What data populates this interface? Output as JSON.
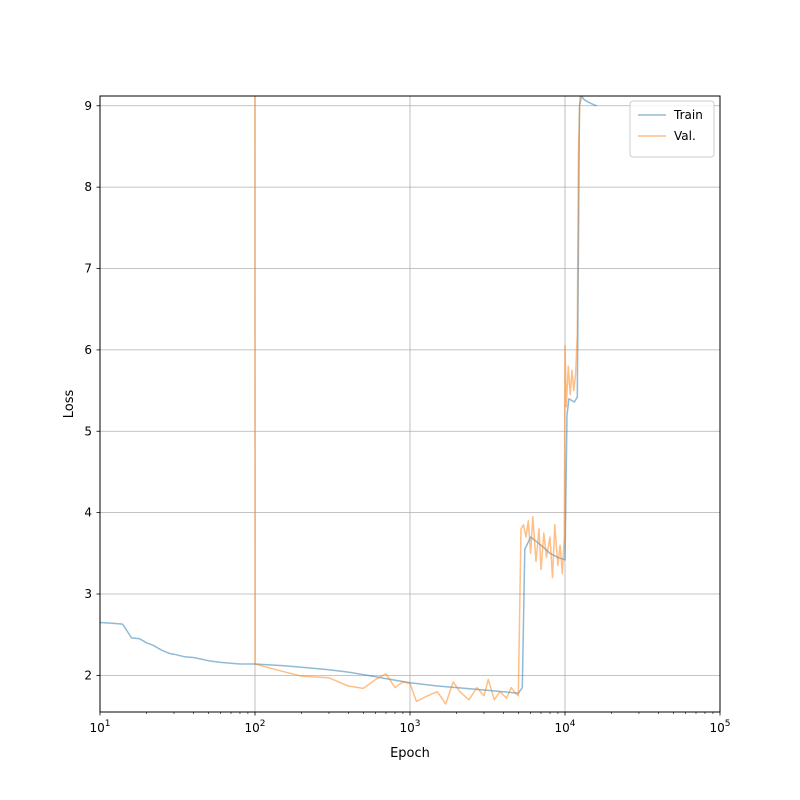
{
  "chart_data": {
    "type": "line",
    "xlabel": "Epoch",
    "ylabel": "Loss",
    "xscale": "log",
    "xlim": [
      10,
      100000
    ],
    "ylim": [
      1.55,
      9.12
    ],
    "grid": true,
    "legend_position": "top-right",
    "x_ticks": [
      {
        "value": 10,
        "base": "10",
        "exp": "1"
      },
      {
        "value": 100,
        "base": "10",
        "exp": "2"
      },
      {
        "value": 1000,
        "base": "10",
        "exp": "3"
      },
      {
        "value": 10000,
        "base": "10",
        "exp": "4"
      },
      {
        "value": 100000,
        "base": "10",
        "exp": "5"
      }
    ],
    "y_ticks": [
      {
        "value": 2,
        "label": "2"
      },
      {
        "value": 3,
        "label": "3"
      },
      {
        "value": 4,
        "label": "4"
      },
      {
        "value": 5,
        "label": "5"
      },
      {
        "value": 6,
        "label": "6"
      },
      {
        "value": 7,
        "label": "7"
      },
      {
        "value": 8,
        "label": "8"
      },
      {
        "value": 9,
        "label": "9"
      }
    ],
    "series": [
      {
        "name": "Train",
        "color": "#1f77b4",
        "opacity": 0.5,
        "x": [
          10,
          12,
          14,
          16,
          18,
          20,
          22,
          25,
          28,
          30,
          35,
          40,
          45,
          50,
          60,
          70,
          80,
          90,
          100,
          150,
          200,
          300,
          400,
          500,
          700,
          1000,
          1500,
          2000,
          3000,
          4000,
          5000,
          5300,
          5500,
          6000,
          7000,
          8000,
          9000,
          10000,
          10300,
          10600,
          11000,
          11500,
          12000,
          12400,
          12800,
          13200,
          14000,
          15000,
          16000
        ],
        "y": [
          2.65,
          2.64,
          2.63,
          2.46,
          2.45,
          2.4,
          2.37,
          2.31,
          2.27,
          2.26,
          2.23,
          2.22,
          2.2,
          2.18,
          2.16,
          2.15,
          2.14,
          2.14,
          2.14,
          2.12,
          2.1,
          2.07,
          2.04,
          2.01,
          1.96,
          1.91,
          1.87,
          1.85,
          1.82,
          1.8,
          1.78,
          1.85,
          3.55,
          3.7,
          3.6,
          3.5,
          3.45,
          3.42,
          5.2,
          5.4,
          5.38,
          5.36,
          5.42,
          9.0,
          9.12,
          9.08,
          9.05,
          9.02,
          9.0
        ]
      },
      {
        "name": "Val.",
        "color": "#ff7f0e",
        "opacity": 0.5,
        "x": [
          99.9,
          100,
          100.1,
          150,
          200,
          300,
          400,
          500,
          600,
          700,
          800,
          900,
          1000,
          1100,
          1300,
          1500,
          1700,
          1900,
          2100,
          2400,
          2700,
          3000,
          3200,
          3500,
          3800,
          4200,
          4500,
          4800,
          5000,
          5200,
          5400,
          5600,
          5800,
          6000,
          6200,
          6500,
          6800,
          7000,
          7300,
          7600,
          8000,
          8300,
          8600,
          9000,
          9300,
          9600,
          9900,
          10000,
          10200,
          10500,
          10800,
          11100,
          11400,
          11700,
          12000,
          12200,
          12500
        ],
        "y": [
          9.12,
          9.12,
          2.14,
          2.05,
          1.99,
          1.97,
          1.87,
          1.84,
          1.95,
          2.02,
          1.85,
          1.92,
          1.9,
          1.68,
          1.75,
          1.8,
          1.65,
          1.92,
          1.8,
          1.7,
          1.85,
          1.75,
          1.95,
          1.7,
          1.8,
          1.72,
          1.85,
          1.78,
          1.75,
          3.8,
          3.85,
          3.7,
          3.9,
          3.5,
          3.95,
          3.4,
          3.8,
          3.3,
          3.75,
          3.45,
          3.7,
          3.2,
          3.85,
          3.35,
          3.6,
          3.25,
          3.7,
          6.05,
          5.3,
          5.8,
          5.45,
          5.75,
          5.5,
          5.7,
          6.2,
          8.4,
          9.12
        ]
      }
    ]
  }
}
